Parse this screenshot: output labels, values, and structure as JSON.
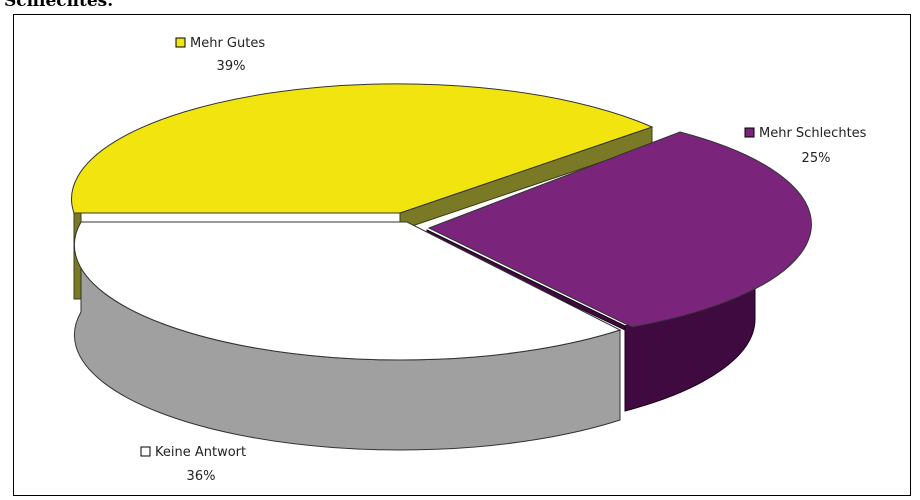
{
  "page": {
    "heading": "Schlechtes."
  },
  "chart_data": {
    "type": "pie",
    "title": "",
    "style": "3d-exploded",
    "slices": [
      {
        "label": "Mehr Gutes",
        "percent_label": "39%",
        "value": 39,
        "color": "#f2e50f",
        "side_color": "#7a7a26"
      },
      {
        "label": "Mehr Schlechtes",
        "percent_label": "25%",
        "value": 25,
        "color": "#7b247c",
        "side_color": "#3e0a40"
      },
      {
        "label": "Keine Antwort",
        "percent_label": "36%",
        "value": 36,
        "color": "#ffffff",
        "side_color": "#a0a0a0"
      }
    ],
    "legend": "inline-labels"
  }
}
